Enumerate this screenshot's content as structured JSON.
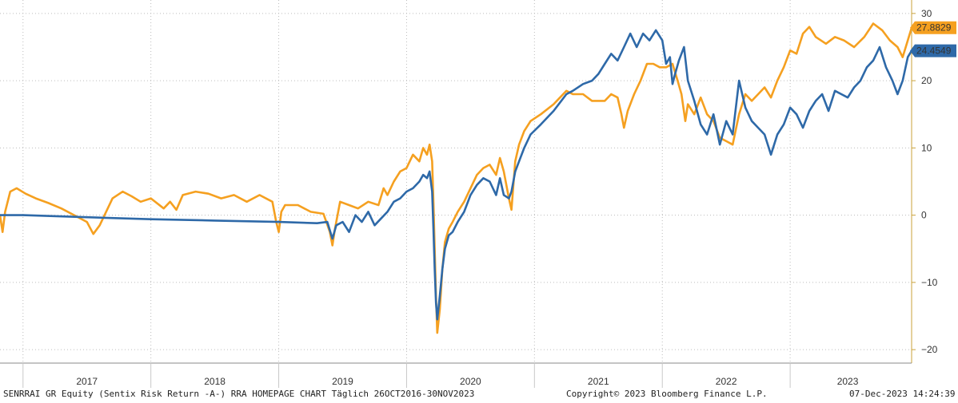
{
  "footer": {
    "left": "SENRRAI GR Equity (Sentix Risk Return -A-) RRA HOMEPAGE CHART  Täglich 26OCT2016-30NOV2023",
    "center": "Copyright© 2023 Bloomberg Finance L.P.",
    "right": "07-Dec-2023 14:24:39"
  },
  "chart_data": {
    "type": "line",
    "title": "",
    "xlabel": "",
    "ylabel": "",
    "xlim": [
      2016.82,
      2023.95
    ],
    "ylim": [
      -22,
      32
    ],
    "y_ticks": [
      30,
      20,
      10,
      0,
      -10,
      -20
    ],
    "y_tick_labels": [
      "30",
      "20",
      "10",
      "0",
      "−10",
      "−20"
    ],
    "x_period_labels": [
      "2017",
      "2018",
      "2019",
      "2020",
      "2021",
      "2022",
      "2023"
    ],
    "x_period_centers": [
      2017.5,
      2018.5,
      2019.5,
      2020.5,
      2021.5,
      2022.5,
      2023.45
    ],
    "x_gridlines": [
      2017.0,
      2018.0,
      2019.0,
      2020.0,
      2021.0,
      2022.0,
      2023.0
    ],
    "grid": true,
    "axis_side": "right",
    "series": [
      {
        "color": "#f5a020",
        "last_label": "27.8829",
        "last_value": 27.88,
        "points": [
          [
            2016.82,
            0.0
          ],
          [
            2016.84,
            -2.5
          ],
          [
            2016.86,
            0.5
          ],
          [
            2016.9,
            3.5
          ],
          [
            2016.95,
            4.0
          ],
          [
            2017.02,
            3.2
          ],
          [
            2017.1,
            2.5
          ],
          [
            2017.2,
            1.8
          ],
          [
            2017.3,
            1.0
          ],
          [
            2017.4,
            0.0
          ],
          [
            2017.5,
            -1.0
          ],
          [
            2017.55,
            -2.8
          ],
          [
            2017.6,
            -1.5
          ],
          [
            2017.65,
            0.5
          ],
          [
            2017.7,
            2.5
          ],
          [
            2017.78,
            3.5
          ],
          [
            2017.85,
            2.8
          ],
          [
            2017.92,
            2.0
          ],
          [
            2018.0,
            2.5
          ],
          [
            2018.1,
            1.0
          ],
          [
            2018.15,
            2.0
          ],
          [
            2018.2,
            0.8
          ],
          [
            2018.25,
            3.0
          ],
          [
            2018.35,
            3.5
          ],
          [
            2018.45,
            3.2
          ],
          [
            2018.55,
            2.5
          ],
          [
            2018.65,
            3.0
          ],
          [
            2018.75,
            2.0
          ],
          [
            2018.85,
            3.0
          ],
          [
            2018.95,
            2.0
          ],
          [
            2018.98,
            -1.0
          ],
          [
            2019.0,
            -2.5
          ],
          [
            2019.02,
            0.5
          ],
          [
            2019.05,
            1.5
          ],
          [
            2019.15,
            1.5
          ],
          [
            2019.25,
            0.5
          ],
          [
            2019.35,
            0.2
          ],
          [
            2019.4,
            -2.5
          ],
          [
            2019.42,
            -4.5
          ],
          [
            2019.44,
            -2.0
          ],
          [
            2019.48,
            2.0
          ],
          [
            2019.55,
            1.5
          ],
          [
            2019.62,
            1.0
          ],
          [
            2019.7,
            2.0
          ],
          [
            2019.78,
            1.5
          ],
          [
            2019.82,
            4.0
          ],
          [
            2019.85,
            3.0
          ],
          [
            2019.9,
            5.0
          ],
          [
            2019.95,
            6.5
          ],
          [
            2020.0,
            7.0
          ],
          [
            2020.05,
            9.0
          ],
          [
            2020.1,
            8.0
          ],
          [
            2020.13,
            10.0
          ],
          [
            2020.16,
            9.0
          ],
          [
            2020.18,
            10.5
          ],
          [
            2020.2,
            8.0
          ],
          [
            2020.21,
            2.0
          ],
          [
            2020.22,
            -5.0
          ],
          [
            2020.23,
            -12.0
          ],
          [
            2020.24,
            -17.5
          ],
          [
            2020.26,
            -14.0
          ],
          [
            2020.28,
            -8.0
          ],
          [
            2020.3,
            -4.0
          ],
          [
            2020.33,
            -2.0
          ],
          [
            2020.36,
            -1.0
          ],
          [
            2020.4,
            0.5
          ],
          [
            2020.45,
            2.0
          ],
          [
            2020.5,
            4.0
          ],
          [
            2020.55,
            6.0
          ],
          [
            2020.6,
            7.0
          ],
          [
            2020.65,
            7.5
          ],
          [
            2020.7,
            6.0
          ],
          [
            2020.73,
            8.5
          ],
          [
            2020.76,
            6.5
          ],
          [
            2020.8,
            2.5
          ],
          [
            2020.82,
            0.8
          ],
          [
            2020.85,
            8.0
          ],
          [
            2020.88,
            10.5
          ],
          [
            2020.92,
            12.5
          ],
          [
            2020.97,
            14.0
          ],
          [
            2021.05,
            15.0
          ],
          [
            2021.15,
            16.5
          ],
          [
            2021.25,
            18.5
          ],
          [
            2021.3,
            18.0
          ],
          [
            2021.38,
            18.0
          ],
          [
            2021.45,
            17.0
          ],
          [
            2021.55,
            17.0
          ],
          [
            2021.6,
            18.0
          ],
          [
            2021.65,
            17.5
          ],
          [
            2021.68,
            15.0
          ],
          [
            2021.7,
            13.0
          ],
          [
            2021.73,
            15.5
          ],
          [
            2021.78,
            18.0
          ],
          [
            2021.83,
            20.0
          ],
          [
            2021.88,
            22.5
          ],
          [
            2021.93,
            22.5
          ],
          [
            2021.98,
            22.0
          ],
          [
            2022.03,
            22.0
          ],
          [
            2022.08,
            22.5
          ],
          [
            2022.12,
            20.0
          ],
          [
            2022.15,
            18.0
          ],
          [
            2022.18,
            14.0
          ],
          [
            2022.2,
            16.5
          ],
          [
            2022.25,
            15.0
          ],
          [
            2022.3,
            17.5
          ],
          [
            2022.35,
            15.0
          ],
          [
            2022.4,
            14.0
          ],
          [
            2022.45,
            11.5
          ],
          [
            2022.5,
            11.0
          ],
          [
            2022.55,
            10.5
          ],
          [
            2022.6,
            15.0
          ],
          [
            2022.65,
            18.0
          ],
          [
            2022.7,
            17.0
          ],
          [
            2022.75,
            18.0
          ],
          [
            2022.8,
            19.0
          ],
          [
            2022.85,
            17.5
          ],
          [
            2022.9,
            20.0
          ],
          [
            2022.95,
            22.0
          ],
          [
            2023.0,
            24.5
          ],
          [
            2023.05,
            24.0
          ],
          [
            2023.1,
            27.0
          ],
          [
            2023.15,
            28.0
          ],
          [
            2023.2,
            26.5
          ],
          [
            2023.28,
            25.5
          ],
          [
            2023.35,
            26.5
          ],
          [
            2023.42,
            26.0
          ],
          [
            2023.5,
            25.0
          ],
          [
            2023.58,
            26.5
          ],
          [
            2023.65,
            28.5
          ],
          [
            2023.72,
            27.5
          ],
          [
            2023.78,
            26.0
          ],
          [
            2023.84,
            25.0
          ],
          [
            2023.88,
            23.5
          ],
          [
            2023.92,
            26.0
          ],
          [
            2023.95,
            27.88
          ]
        ]
      },
      {
        "color": "#2e69a8",
        "last_label": "24.4549",
        "last_value": 24.45,
        "points": [
          [
            2016.82,
            0.0
          ],
          [
            2017.0,
            0.0
          ],
          [
            2017.5,
            -0.3
          ],
          [
            2018.0,
            -0.6
          ],
          [
            2018.5,
            -0.8
          ],
          [
            2019.0,
            -1.0
          ],
          [
            2019.3,
            -1.2
          ],
          [
            2019.38,
            -1.0
          ],
          [
            2019.42,
            -3.5
          ],
          [
            2019.45,
            -1.5
          ],
          [
            2019.5,
            -1.0
          ],
          [
            2019.55,
            -2.5
          ],
          [
            2019.6,
            0.0
          ],
          [
            2019.65,
            -1.0
          ],
          [
            2019.7,
            0.5
          ],
          [
            2019.75,
            -1.5
          ],
          [
            2019.8,
            -0.5
          ],
          [
            2019.85,
            0.5
          ],
          [
            2019.9,
            2.0
          ],
          [
            2019.95,
            2.5
          ],
          [
            2020.0,
            3.5
          ],
          [
            2020.05,
            4.0
          ],
          [
            2020.1,
            5.0
          ],
          [
            2020.13,
            6.0
          ],
          [
            2020.16,
            5.5
          ],
          [
            2020.18,
            6.5
          ],
          [
            2020.2,
            3.5
          ],
          [
            2020.21,
            -2.0
          ],
          [
            2020.22,
            -8.0
          ],
          [
            2020.23,
            -13.0
          ],
          [
            2020.24,
            -15.5
          ],
          [
            2020.26,
            -12.0
          ],
          [
            2020.28,
            -8.0
          ],
          [
            2020.3,
            -5.0
          ],
          [
            2020.33,
            -3.0
          ],
          [
            2020.36,
            -2.5
          ],
          [
            2020.4,
            -1.0
          ],
          [
            2020.45,
            0.5
          ],
          [
            2020.5,
            3.0
          ],
          [
            2020.55,
            4.5
          ],
          [
            2020.6,
            5.5
          ],
          [
            2020.65,
            5.0
          ],
          [
            2020.7,
            3.0
          ],
          [
            2020.73,
            5.5
          ],
          [
            2020.76,
            3.0
          ],
          [
            2020.8,
            2.5
          ],
          [
            2020.82,
            3.5
          ],
          [
            2020.85,
            6.5
          ],
          [
            2020.88,
            8.0
          ],
          [
            2020.92,
            10.0
          ],
          [
            2020.97,
            12.0
          ],
          [
            2021.05,
            13.5
          ],
          [
            2021.15,
            15.5
          ],
          [
            2021.25,
            18.0
          ],
          [
            2021.3,
            18.5
          ],
          [
            2021.38,
            19.5
          ],
          [
            2021.45,
            20.0
          ],
          [
            2021.5,
            21.0
          ],
          [
            2021.55,
            22.5
          ],
          [
            2021.6,
            24.0
          ],
          [
            2021.65,
            23.0
          ],
          [
            2021.7,
            25.0
          ],
          [
            2021.75,
            27.0
          ],
          [
            2021.8,
            25.0
          ],
          [
            2021.85,
            27.0
          ],
          [
            2021.9,
            26.0
          ],
          [
            2021.95,
            27.5
          ],
          [
            2022.0,
            26.0
          ],
          [
            2022.03,
            22.5
          ],
          [
            2022.06,
            23.5
          ],
          [
            2022.08,
            19.5
          ],
          [
            2022.1,
            21.0
          ],
          [
            2022.13,
            23.0
          ],
          [
            2022.17,
            25.0
          ],
          [
            2022.2,
            20.0
          ],
          [
            2022.25,
            17.0
          ],
          [
            2022.3,
            13.5
          ],
          [
            2022.35,
            12.0
          ],
          [
            2022.4,
            15.0
          ],
          [
            2022.45,
            10.5
          ],
          [
            2022.5,
            14.0
          ],
          [
            2022.55,
            12.0
          ],
          [
            2022.6,
            20.0
          ],
          [
            2022.65,
            16.0
          ],
          [
            2022.7,
            14.0
          ],
          [
            2022.75,
            13.0
          ],
          [
            2022.8,
            12.0
          ],
          [
            2022.85,
            9.0
          ],
          [
            2022.9,
            12.0
          ],
          [
            2022.95,
            13.5
          ],
          [
            2023.0,
            16.0
          ],
          [
            2023.05,
            15.0
          ],
          [
            2023.1,
            13.0
          ],
          [
            2023.15,
            15.5
          ],
          [
            2023.2,
            17.0
          ],
          [
            2023.25,
            18.0
          ],
          [
            2023.3,
            15.5
          ],
          [
            2023.35,
            18.5
          ],
          [
            2023.4,
            18.0
          ],
          [
            2023.45,
            17.5
          ],
          [
            2023.5,
            19.0
          ],
          [
            2023.55,
            20.0
          ],
          [
            2023.6,
            22.0
          ],
          [
            2023.65,
            23.0
          ],
          [
            2023.7,
            25.0
          ],
          [
            2023.75,
            22.0
          ],
          [
            2023.8,
            20.0
          ],
          [
            2023.84,
            18.0
          ],
          [
            2023.88,
            20.0
          ],
          [
            2023.92,
            23.5
          ],
          [
            2023.95,
            24.45
          ]
        ]
      }
    ]
  }
}
